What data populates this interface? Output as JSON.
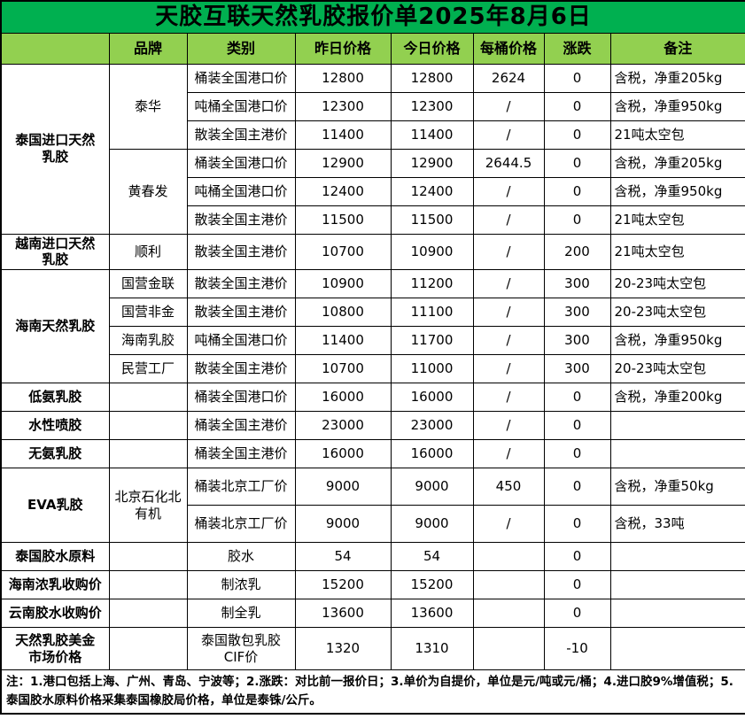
{
  "title": "天胶互联天然乳胶报价单2025年8月6日",
  "columns": [
    "",
    "品牌",
    "类别",
    "昨日价格",
    "今日价格",
    "每桶价格",
    "涨跌",
    "备注"
  ],
  "rows": [
    {
      "cells": [
        {
          "t": "泰国进口天然\n乳胶",
          "rs": 6,
          "cls": "group"
        },
        {
          "t": "泰华",
          "rs": 3,
          "cls": "brand"
        },
        {
          "t": "桶装全国港口价",
          "cls": "cat"
        },
        {
          "t": "12800"
        },
        {
          "t": "12800"
        },
        {
          "t": "2624"
        },
        {
          "t": "0"
        },
        {
          "t": "含税，净重205kg",
          "cls": "remark"
        }
      ]
    },
    {
      "cells": [
        {
          "t": "吨桶全国港口价",
          "cls": "cat"
        },
        {
          "t": "12300"
        },
        {
          "t": "12300"
        },
        {
          "t": "/"
        },
        {
          "t": "0"
        },
        {
          "t": "含税，净重950kg",
          "cls": "remark"
        }
      ]
    },
    {
      "cells": [
        {
          "t": "散装全国主港价",
          "cls": "cat"
        },
        {
          "t": "11400"
        },
        {
          "t": "11400"
        },
        {
          "t": "/"
        },
        {
          "t": "0"
        },
        {
          "t": "21吨太空包",
          "cls": "remark"
        }
      ]
    },
    {
      "cells": [
        {
          "t": "黄春发",
          "rs": 3,
          "cls": "brand"
        },
        {
          "t": "桶装全国港口价",
          "cls": "cat"
        },
        {
          "t": "12900"
        },
        {
          "t": "12900"
        },
        {
          "t": "2644.5"
        },
        {
          "t": "0"
        },
        {
          "t": "含税，净重205kg",
          "cls": "remark"
        }
      ]
    },
    {
      "cells": [
        {
          "t": "吨桶全国港口价",
          "cls": "cat"
        },
        {
          "t": "12400"
        },
        {
          "t": "12400"
        },
        {
          "t": "/"
        },
        {
          "t": "0"
        },
        {
          "t": "含税，净重950kg",
          "cls": "remark"
        }
      ]
    },
    {
      "cells": [
        {
          "t": "散装全国主港价",
          "cls": "cat"
        },
        {
          "t": "11500"
        },
        {
          "t": "11500"
        },
        {
          "t": "/"
        },
        {
          "t": "0"
        },
        {
          "t": "21吨太空包",
          "cls": "remark"
        }
      ]
    },
    {
      "cells": [
        {
          "t": "越南进口天然\n乳胶",
          "cls": "group"
        },
        {
          "t": "顺利",
          "cls": "brand"
        },
        {
          "t": "散装全国主港价",
          "cls": "cat"
        },
        {
          "t": "10700"
        },
        {
          "t": "10900"
        },
        {
          "t": "/"
        },
        {
          "t": "200"
        },
        {
          "t": "21吨太空包",
          "cls": "remark"
        }
      ]
    },
    {
      "cells": [
        {
          "t": "海南天然乳胶",
          "rs": 4,
          "cls": "group"
        },
        {
          "t": "国营金联",
          "cls": "brand"
        },
        {
          "t": "散装全国主港价",
          "cls": "cat"
        },
        {
          "t": "10900"
        },
        {
          "t": "11200"
        },
        {
          "t": "/"
        },
        {
          "t": "300"
        },
        {
          "t": "20-23吨太空包",
          "cls": "remark"
        }
      ]
    },
    {
      "cells": [
        {
          "t": "国营非金",
          "cls": "brand"
        },
        {
          "t": "散装全国主港价",
          "cls": "cat"
        },
        {
          "t": "10800"
        },
        {
          "t": "11100"
        },
        {
          "t": "/"
        },
        {
          "t": "300"
        },
        {
          "t": "20-23吨太空包",
          "cls": "remark"
        }
      ]
    },
    {
      "cells": [
        {
          "t": "海南乳胶",
          "cls": "brand"
        },
        {
          "t": "吨桶全国港口价",
          "cls": "cat"
        },
        {
          "t": "11400"
        },
        {
          "t": "11700"
        },
        {
          "t": "/"
        },
        {
          "t": "300"
        },
        {
          "t": "含税，净重950kg",
          "cls": "remark"
        }
      ]
    },
    {
      "cells": [
        {
          "t": "民营工厂",
          "cls": "brand"
        },
        {
          "t": "散装全国主港价",
          "cls": "cat"
        },
        {
          "t": "10700"
        },
        {
          "t": "11000"
        },
        {
          "t": "/"
        },
        {
          "t": "300"
        },
        {
          "t": "20-23吨太空包",
          "cls": "remark"
        }
      ]
    },
    {
      "cells": [
        {
          "t": "低氨乳胶",
          "cls": "group"
        },
        {
          "t": "",
          "cls": "brand"
        },
        {
          "t": "桶装全国港口价",
          "cls": "cat"
        },
        {
          "t": "16000"
        },
        {
          "t": "16000"
        },
        {
          "t": "/"
        },
        {
          "t": "0"
        },
        {
          "t": "含税，净重200kg",
          "cls": "remark"
        }
      ]
    },
    {
      "cells": [
        {
          "t": "水性喷胶",
          "cls": "group"
        },
        {
          "t": "",
          "cls": "brand"
        },
        {
          "t": "桶装全国主港价",
          "cls": "cat"
        },
        {
          "t": "23000"
        },
        {
          "t": "23000"
        },
        {
          "t": "/"
        },
        {
          "t": "0"
        },
        {
          "t": "",
          "cls": "remark"
        }
      ]
    },
    {
      "cells": [
        {
          "t": "无氨乳胶",
          "cls": "group"
        },
        {
          "t": "",
          "cls": "brand"
        },
        {
          "t": "桶装全国主港价",
          "cls": "cat"
        },
        {
          "t": "16000"
        },
        {
          "t": "16000"
        },
        {
          "t": "/"
        },
        {
          "t": "0"
        },
        {
          "t": "",
          "cls": "remark"
        }
      ]
    },
    {
      "cells": [
        {
          "t": "EVA乳胶",
          "rs": 2,
          "cls": "group"
        },
        {
          "t": "北京石化北\n有机",
          "rs": 2,
          "cls": "brand"
        },
        {
          "t": "桶装北京工厂价",
          "cls": "cat"
        },
        {
          "t": "9000"
        },
        {
          "t": "9000"
        },
        {
          "t": "450"
        },
        {
          "t": "0"
        },
        {
          "t": "含税，净重50kg",
          "cls": "remark"
        }
      ]
    },
    {
      "cells": [
        {
          "t": "桶装北京工厂价",
          "cls": "cat"
        },
        {
          "t": "9000"
        },
        {
          "t": "9000"
        },
        {
          "t": "/"
        },
        {
          "t": "0"
        },
        {
          "t": "含税，33吨",
          "cls": "remark"
        }
      ]
    },
    {
      "cells": [
        {
          "t": "泰国胶水原料",
          "cls": "group"
        },
        {
          "t": "",
          "cls": "brand"
        },
        {
          "t": "胶水",
          "cls": "cat"
        },
        {
          "t": "54"
        },
        {
          "t": "54"
        },
        {
          "t": ""
        },
        {
          "t": "0"
        },
        {
          "t": "",
          "cls": "remark"
        }
      ]
    },
    {
      "cells": [
        {
          "t": "海南浓乳收购价",
          "cls": "group"
        },
        {
          "t": "",
          "cls": "brand"
        },
        {
          "t": "制浓乳",
          "cls": "cat"
        },
        {
          "t": "15200"
        },
        {
          "t": "15200"
        },
        {
          "t": ""
        },
        {
          "t": "0"
        },
        {
          "t": "",
          "cls": "remark"
        }
      ]
    },
    {
      "cells": [
        {
          "t": "云南胶水收购价",
          "cls": "group"
        },
        {
          "t": "",
          "cls": "brand"
        },
        {
          "t": "制全乳",
          "cls": "cat"
        },
        {
          "t": "13600"
        },
        {
          "t": "13600"
        },
        {
          "t": ""
        },
        {
          "t": "0"
        },
        {
          "t": "",
          "cls": "remark"
        }
      ]
    },
    {
      "cells": [
        {
          "t": "天然乳胶美金\n市场价格",
          "cls": "group"
        },
        {
          "t": "",
          "cls": "brand"
        },
        {
          "t": "泰国散包乳胶\nCIF价",
          "cls": "cat"
        },
        {
          "t": "1320"
        },
        {
          "t": "1310"
        },
        {
          "t": ""
        },
        {
          "t": "-10"
        },
        {
          "t": "",
          "cls": "remark"
        }
      ]
    }
  ],
  "notes": "注：1.港口包括上海、广州、青岛、宁波等；2.涨跌：对比前一报价日；3.单价为自提价，单位是元/吨或元/桶；4.进口胶9%增值税；5.泰国胶水原料价格采集泰国橡胶局价格，单位是泰铢/公斤。",
  "colors": {
    "title_bg": "#00b050",
    "header_bg": "#92d050",
    "border": "#000000"
  }
}
